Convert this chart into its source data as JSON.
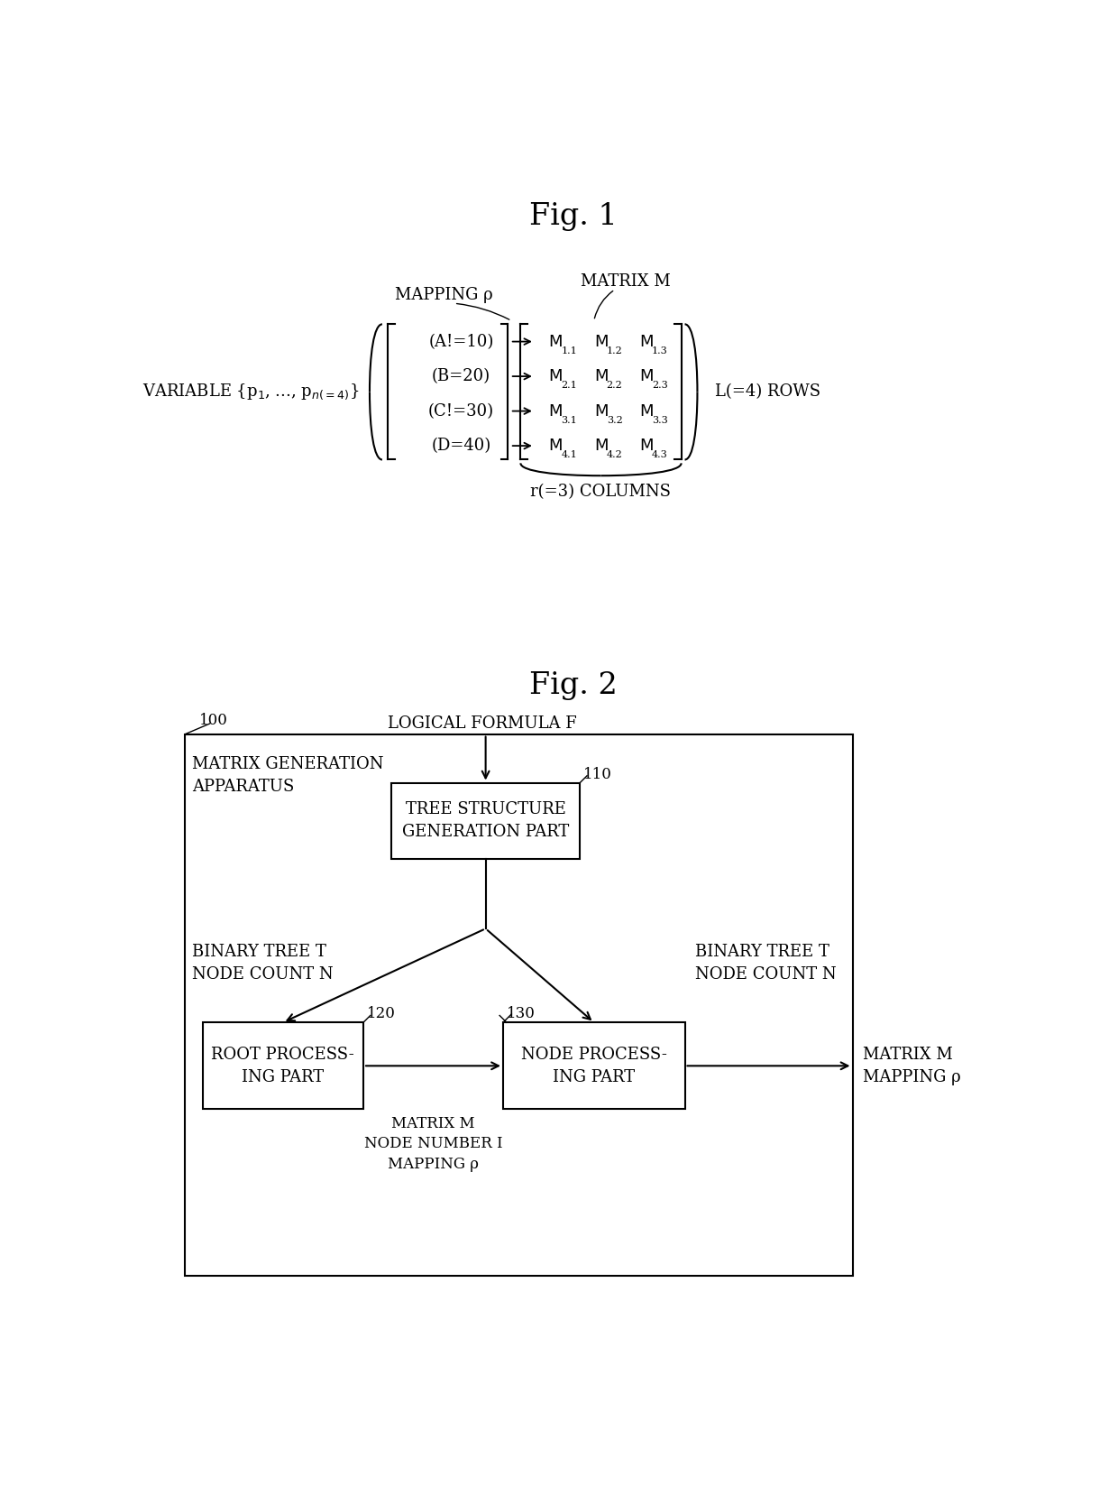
{
  "fig_title1": "Fig. 1",
  "fig_title2": "Fig. 2",
  "background_color": "#ffffff",
  "fig1": {
    "variable_label": "VARIABLE {p₁, ..., pₙ(=4)}",
    "mapping_label": "MAPPING ρ",
    "matrix_label": "MATRIX M",
    "rows_label": "L(=4) ROWS",
    "cols_label": "r(=3) COLUMNS",
    "cond_rows": [
      "(A!=10)",
      "(B=20)",
      "(C!=30)",
      "(D=40)"
    ],
    "matrix_labels": [
      [
        "M₁.₁",
        "M₁.₂",
        "M₁.₃"
      ],
      [
        "M₂.₁",
        "M₂.₂",
        "M₂.₃"
      ],
      [
        "M₃.₁",
        "M₃.₂",
        "M₃.₃"
      ],
      [
        "M₄.₁",
        "M₄.₂",
        "M₄.₃"
      ]
    ]
  },
  "fig2": {
    "outer_label": "100",
    "outer_box_label": "MATRIX GENERATION\nAPPARATUS",
    "formula_label": "LOGICAL FORMULA F",
    "box110_label": "TREE STRUCTURE\nGENERATION PART",
    "box110_num": "110",
    "box120_label": "ROOT PROCESS-\nING PART",
    "box120_num": "120",
    "box130_label": "NODE PROCESS-\nING PART",
    "box130_num": "130",
    "left_label": "BINARY TREE T\nNODE COUNT N",
    "right_label": "BINARY TREE T\nNODE COUNT N",
    "middle_label": "MATRIX M\nNODE NUMBER I\nMAPPING ρ",
    "output_label": "MATRIX M\nMAPPING ρ"
  }
}
